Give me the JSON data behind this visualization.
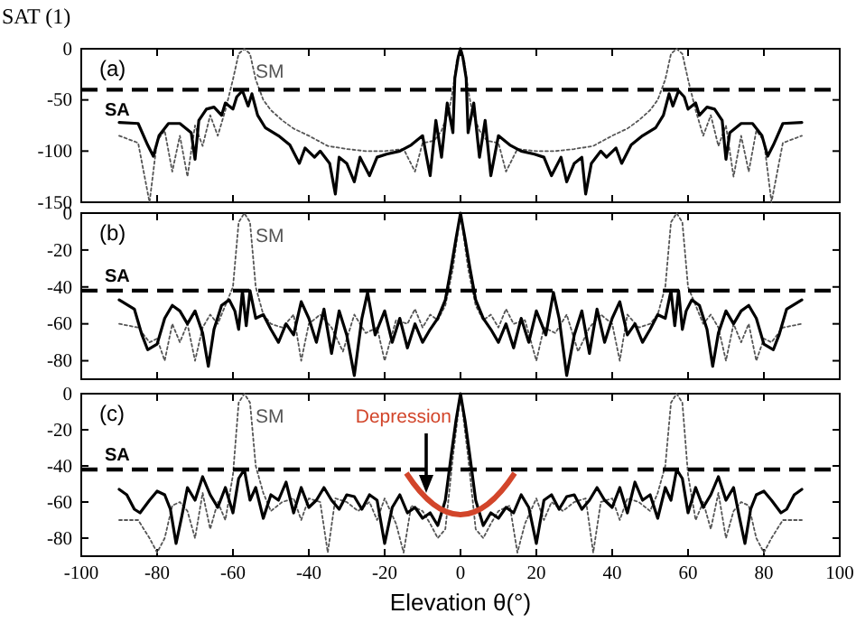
{
  "chart_data": [
    {
      "type": "line",
      "title": "SAT (1)",
      "annotations": [
        "(a)"
      ],
      "xlim": [
        -100,
        100
      ],
      "xticks": [
        -100,
        -80,
        -60,
        -40,
        -20,
        0,
        20,
        40,
        60,
        80,
        100
      ],
      "ylim": [
        -150,
        0
      ],
      "yticks": [
        -150,
        -100,
        -50,
        0
      ],
      "tick_labels": "y",
      "grid": false,
      "ref_lines": [
        {
          "axis": "y",
          "value": -40,
          "line_style": "dashed",
          "color": "#000000"
        }
      ],
      "series": [
        {
          "name": "SA",
          "color": "#000000",
          "line_style": "solid",
          "x": [
            -90,
            -85,
            -82.5,
            -81,
            -79.5,
            -77,
            -74,
            -71,
            -70,
            -69,
            -67,
            -65,
            -63,
            -62,
            -60,
            -59,
            -57.5,
            -56,
            -55,
            -53.5,
            -51.5,
            -48,
            -45,
            -42.5,
            -41,
            -38.5,
            -37,
            -34.5,
            -33,
            -32,
            -30,
            -28,
            -26.5,
            -24,
            -22,
            -19.5,
            -16,
            -13,
            -10,
            -8,
            -6.5,
            -5,
            -3.5,
            -2,
            -1.5,
            -0.6,
            0,
            0.6,
            1.5,
            2,
            3.5,
            5,
            6.5,
            8,
            10,
            13,
            16,
            19.5,
            22,
            24,
            26.5,
            28,
            30,
            32,
            33,
            34.5,
            37,
            38.5,
            41,
            42.5,
            45,
            48,
            51.5,
            53.5,
            55,
            56,
            57.5,
            59,
            60,
            62,
            63,
            65,
            67,
            69,
            70,
            71,
            74,
            77,
            79.5,
            81,
            82.5,
            85,
            90
          ],
          "values": [
            -72,
            -73,
            -94,
            -105,
            -85,
            -73,
            -73,
            -82,
            -108,
            -70,
            -59,
            -57,
            -65,
            -53,
            -59,
            -47,
            -41,
            -56,
            -44,
            -65,
            -77,
            -85,
            -94,
            -112,
            -97,
            -106,
            -100,
            -112,
            -142,
            -106,
            -112,
            -130,
            -106,
            -124,
            -106,
            -103,
            -100,
            -94,
            -85,
            -124,
            -70,
            -106,
            -53,
            -82,
            -29,
            -8,
            0,
            -8,
            -29,
            -82,
            -53,
            -106,
            -70,
            -124,
            -85,
            -94,
            -100,
            -103,
            -106,
            -124,
            -106,
            -130,
            -112,
            -106,
            -142,
            -112,
            -100,
            -106,
            -97,
            -112,
            -94,
            -85,
            -77,
            -65,
            -44,
            -56,
            -41,
            -47,
            -59,
            -53,
            -65,
            -57,
            -59,
            -70,
            -108,
            -82,
            -73,
            -73,
            -85,
            -105,
            -94,
            -73,
            -72
          ]
        },
        {
          "name": "SM",
          "color": "#555555",
          "line_style": "dotted",
          "x": [
            -90,
            -85,
            -82,
            -80,
            -78,
            -76,
            -74,
            -72,
            -70,
            -68,
            -66,
            -64,
            -62,
            -60,
            -58.5,
            -57,
            -55.5,
            -54,
            -52,
            -50,
            -47,
            -44,
            -40,
            -35,
            -30,
            -25,
            -20,
            -15,
            -12,
            -10,
            -7,
            -5,
            -3,
            -2,
            -1,
            0,
            1,
            2,
            3,
            5,
            7,
            10,
            12,
            15,
            20,
            25,
            30,
            35,
            40,
            44,
            47,
            50,
            52,
            54,
            55.5,
            57,
            58.5,
            60,
            62,
            64,
            66,
            68,
            70,
            72,
            74,
            76,
            78,
            80,
            82,
            85,
            90
          ],
          "values": [
            -85,
            -92,
            -150,
            -90,
            -80,
            -120,
            -85,
            -125,
            -75,
            -95,
            -65,
            -85,
            -60,
            -30,
            -5,
            0,
            -5,
            -30,
            -50,
            -60,
            -70,
            -78,
            -85,
            -95,
            -98,
            -100,
            -100,
            -98,
            -120,
            -92,
            -90,
            -80,
            -60,
            -40,
            -12,
            0,
            -12,
            -40,
            -60,
            -80,
            -90,
            -92,
            -120,
            -98,
            -100,
            -100,
            -98,
            -95,
            -85,
            -78,
            -70,
            -60,
            -50,
            -30,
            -5,
            0,
            -5,
            -30,
            -60,
            -85,
            -65,
            -95,
            -75,
            -125,
            -85,
            -120,
            -80,
            -90,
            -150,
            -92,
            -85
          ]
        }
      ]
    },
    {
      "type": "line",
      "annotations": [
        "(b)"
      ],
      "xlim": [
        -100,
        100
      ],
      "xticks": [
        -100,
        -80,
        -60,
        -40,
        -20,
        0,
        20,
        40,
        60,
        80,
        100
      ],
      "ylim": [
        -90,
        0
      ],
      "yticks": [
        -80,
        -60,
        -40,
        -20,
        0
      ],
      "tick_labels": "y",
      "grid": false,
      "ref_lines": [
        {
          "axis": "y",
          "value": -42,
          "line_style": "dashed",
          "color": "#000000"
        }
      ],
      "series": [
        {
          "name": "SA",
          "color": "#000000",
          "line_style": "solid",
          "x": [
            -90,
            -86,
            -84,
            -82.5,
            -80,
            -78,
            -76,
            -74,
            -72,
            -70,
            -68,
            -66.5,
            -65,
            -63,
            -61,
            -59.5,
            -58.5,
            -57.5,
            -56.5,
            -55.5,
            -54,
            -52,
            -50,
            -48,
            -46,
            -44,
            -42,
            -40,
            -38,
            -36,
            -34,
            -32,
            -30,
            -28,
            -26,
            -24.5,
            -22.5,
            -20,
            -18,
            -16,
            -14,
            -12,
            -10,
            -8,
            -6,
            -4,
            -2.5,
            -1.2,
            0,
            1.2,
            2.5,
            4,
            6,
            8,
            10,
            12,
            14,
            16,
            18,
            20,
            22.5,
            24.5,
            26,
            28,
            30,
            32,
            34,
            36,
            38,
            40,
            42,
            44,
            46,
            48,
            50,
            52,
            54,
            55.5,
            56.5,
            57.5,
            58.5,
            59.5,
            61,
            63,
            65,
            66.5,
            68,
            70,
            72,
            74,
            76,
            78,
            80,
            82.5,
            84,
            86,
            90
          ],
          "values": [
            -47,
            -52,
            -66,
            -74,
            -71,
            -57,
            -50,
            -53,
            -60,
            -53,
            -65,
            -83,
            -63,
            -50,
            -47,
            -53,
            -63,
            -42,
            -61,
            -42,
            -57,
            -55,
            -63,
            -70,
            -60,
            -66,
            -48,
            -57,
            -70,
            -52,
            -76,
            -53,
            -66,
            -88,
            -57,
            -43,
            -66,
            -53,
            -70,
            -57,
            -73,
            -60,
            -70,
            -63,
            -57,
            -47,
            -30,
            -14,
            0,
            -14,
            -30,
            -47,
            -57,
            -63,
            -70,
            -60,
            -73,
            -57,
            -70,
            -53,
            -66,
            -43,
            -57,
            -88,
            -66,
            -53,
            -76,
            -52,
            -70,
            -57,
            -48,
            -66,
            -60,
            -70,
            -63,
            -55,
            -57,
            -42,
            -61,
            -42,
            -63,
            -53,
            -47,
            -50,
            -63,
            -83,
            -65,
            -53,
            -60,
            -53,
            -50,
            -57,
            -71,
            -74,
            -66,
            -52,
            -47
          ]
        },
        {
          "name": "SM",
          "color": "#555555",
          "line_style": "dotted",
          "x": [
            -90,
            -85,
            -82,
            -80,
            -78,
            -76,
            -74,
            -72,
            -70,
            -68,
            -66,
            -64,
            -62,
            -60,
            -58.5,
            -57,
            -55.5,
            -54,
            -52,
            -50,
            -47,
            -44,
            -42,
            -40,
            -37,
            -34,
            -31,
            -28,
            -25,
            -22,
            -20,
            -17,
            -14,
            -12,
            -10,
            -8,
            -6,
            -4,
            -2,
            0,
            2,
            4,
            6,
            8,
            10,
            12,
            14,
            17,
            20,
            22,
            25,
            28,
            31,
            34,
            37,
            40,
            42,
            44,
            47,
            50,
            52,
            54,
            55.5,
            57,
            58.5,
            60,
            62,
            64,
            66,
            68,
            70,
            72,
            74,
            76,
            78,
            80,
            82,
            85,
            90
          ],
          "values": [
            -60,
            -62,
            -70,
            -68,
            -80,
            -60,
            -70,
            -60,
            -80,
            -62,
            -55,
            -60,
            -50,
            -40,
            -5,
            0,
            -5,
            -40,
            -55,
            -60,
            -62,
            -55,
            -80,
            -60,
            -55,
            -62,
            -75,
            -55,
            -65,
            -62,
            -80,
            -58,
            -60,
            -52,
            -62,
            -55,
            -58,
            -50,
            -30,
            0,
            -30,
            -50,
            -58,
            -55,
            -62,
            -52,
            -60,
            -58,
            -80,
            -62,
            -65,
            -55,
            -75,
            -62,
            -55,
            -60,
            -80,
            -55,
            -62,
            -60,
            -55,
            -40,
            -5,
            0,
            -5,
            -40,
            -50,
            -60,
            -55,
            -62,
            -80,
            -60,
            -70,
            -60,
            -80,
            -68,
            -70,
            -62,
            -60
          ]
        }
      ]
    },
    {
      "type": "line",
      "xlabel": "Elevation θ(°)",
      "annotations": [
        "(c)",
        "Depression"
      ],
      "xlim": [
        -100,
        100
      ],
      "xticks": [
        -100,
        -80,
        -60,
        -40,
        -20,
        0,
        20,
        40,
        60,
        80,
        100
      ],
      "ylim": [
        -90,
        0
      ],
      "yticks": [
        -80,
        -60,
        -40,
        -20,
        0
      ],
      "grid": false,
      "ref_lines": [
        {
          "axis": "y",
          "value": -42,
          "line_style": "dashed",
          "color": "#000000"
        }
      ],
      "series": [
        {
          "name": "SA",
          "color": "#000000",
          "line_style": "solid",
          "x": [
            -90,
            -88,
            -86,
            -84.5,
            -82,
            -80,
            -78,
            -76.5,
            -75,
            -73.5,
            -72,
            -70,
            -68,
            -66,
            -64,
            -62,
            -60,
            -58.5,
            -57,
            -55.5,
            -54,
            -52,
            -50,
            -48,
            -46,
            -44,
            -42,
            -40,
            -38,
            -36,
            -34,
            -32,
            -30,
            -28,
            -26,
            -24,
            -22,
            -20,
            -18,
            -16,
            -14,
            -12,
            -10,
            -8,
            -6,
            -4,
            -2.5,
            -1.2,
            0,
            1.2,
            2.5,
            4,
            6,
            8,
            10,
            12,
            14,
            16,
            18,
            20,
            22,
            24,
            26,
            28,
            30,
            32,
            34,
            36,
            38,
            40,
            42,
            44,
            46,
            48,
            50,
            52,
            54,
            55.5,
            57,
            58.5,
            60,
            62,
            64,
            66,
            68,
            70,
            72,
            73.5,
            75,
            76.5,
            78,
            80,
            82,
            84.5,
            86,
            88,
            90
          ],
          "values": [
            -53,
            -56,
            -64,
            -66,
            -59,
            -54,
            -56,
            -64,
            -83,
            -68,
            -52,
            -59,
            -46,
            -56,
            -63,
            -52,
            -66,
            -47,
            -42,
            -59,
            -52,
            -69,
            -56,
            -59,
            -49,
            -66,
            -52,
            -63,
            -59,
            -52,
            -59,
            -64,
            -56,
            -57,
            -64,
            -56,
            -59,
            -83,
            -63,
            -56,
            -66,
            -63,
            -69,
            -66,
            -73,
            -59,
            -35,
            -15,
            0,
            -15,
            -35,
            -59,
            -73,
            -66,
            -69,
            -63,
            -66,
            -56,
            -63,
            -83,
            -59,
            -56,
            -64,
            -57,
            -56,
            -64,
            -59,
            -52,
            -59,
            -63,
            -52,
            -66,
            -49,
            -59,
            -56,
            -69,
            -52,
            -59,
            -42,
            -47,
            -66,
            -52,
            -63,
            -56,
            -46,
            -59,
            -52,
            -68,
            -83,
            -64,
            -56,
            -54,
            -59,
            -66,
            -64,
            -56,
            -53
          ]
        },
        {
          "name": "SM",
          "color": "#555555",
          "line_style": "dotted",
          "x": [
            -90,
            -85,
            -82,
            -80,
            -78,
            -76,
            -74,
            -72,
            -70,
            -68,
            -66,
            -64,
            -62,
            -60,
            -58.5,
            -57,
            -55.5,
            -54,
            -52,
            -50,
            -47,
            -44,
            -42,
            -40,
            -37,
            -35,
            -33,
            -30,
            -27,
            -24,
            -22,
            -20,
            -17,
            -15,
            -13,
            -10,
            -8,
            -6,
            -4,
            -2,
            0,
            2,
            4,
            6,
            8,
            10,
            13,
            15,
            17,
            20,
            22,
            24,
            27,
            30,
            33,
            35,
            37,
            40,
            42,
            44,
            47,
            50,
            52,
            54,
            55.5,
            57,
            58.5,
            60,
            62,
            64,
            66,
            68,
            70,
            72,
            74,
            76,
            78,
            80,
            82,
            85,
            90
          ],
          "values": [
            -70,
            -70,
            -80,
            -88,
            -80,
            -62,
            -60,
            -65,
            -80,
            -55,
            -75,
            -60,
            -70,
            -45,
            -5,
            0,
            -5,
            -40,
            -55,
            -65,
            -60,
            -58,
            -70,
            -58,
            -60,
            -88,
            -58,
            -60,
            -65,
            -60,
            -70,
            -58,
            -72,
            -88,
            -62,
            -65,
            -72,
            -80,
            -75,
            -35,
            0,
            -35,
            -75,
            -80,
            -72,
            -65,
            -62,
            -88,
            -72,
            -58,
            -70,
            -60,
            -65,
            -60,
            -58,
            -88,
            -60,
            -58,
            -70,
            -58,
            -60,
            -65,
            -55,
            -40,
            -5,
            0,
            -5,
            -45,
            -70,
            -60,
            -75,
            -55,
            -80,
            -65,
            -60,
            -62,
            -80,
            -88,
            -80,
            -70,
            -70
          ]
        }
      ]
    }
  ]
}
